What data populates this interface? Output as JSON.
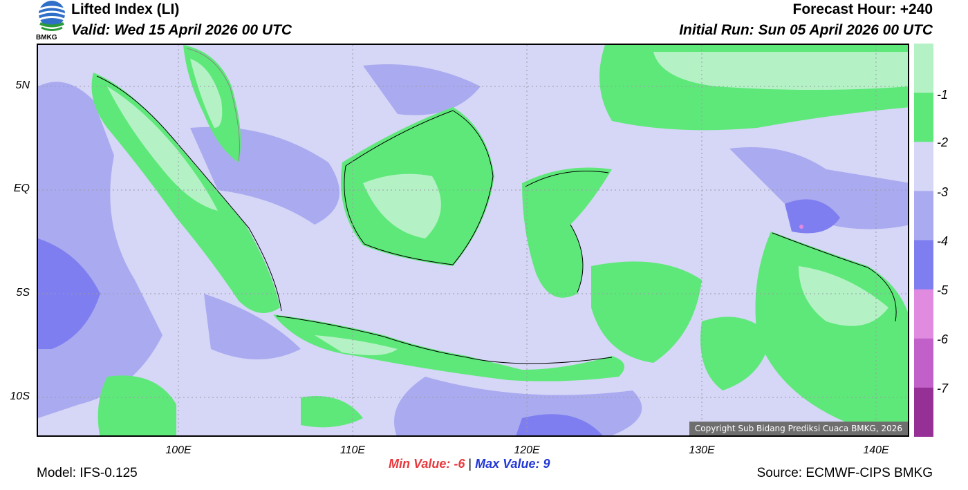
{
  "header": {
    "title": "Lifted Index (LI)",
    "valid": "Valid: Wed 15 April 2026 00 UTC",
    "forecast_hour": "Forecast Hour: +240",
    "initial_run": "Initial Run: Sun 05 April 2026 00 UTC",
    "logo_text": "BMKG"
  },
  "map": {
    "lat_labels": [
      "5N",
      "EQ",
      "5S",
      "10S"
    ],
    "lon_labels": [
      "100E",
      "110E",
      "120E",
      "130E",
      "140E"
    ],
    "copyright": "Copyright Sub Bidang Prediksi Cuaca BMKG, 2026"
  },
  "legend": {
    "labels": [
      "-1",
      "-2",
      "-3",
      "-4",
      "-5",
      "-6",
      "-7"
    ],
    "colors": [
      "#b4f2c6",
      "#5fe87a",
      "#d6d6f7",
      "#aaaaf0",
      "#7e7ef0",
      "#e08ae0",
      "#c060c8",
      "#963096"
    ]
  },
  "footer": {
    "model": "Model: IFS-0.125",
    "source": "Source: ECMWF-CIPS BMKG",
    "min_label": "Min Value:",
    "min_value": "-6",
    "separator": "|",
    "max_label": "Max Value:",
    "max_value": "9"
  },
  "colors": {
    "light_green": "#b4f2c6",
    "green": "#5fe87a",
    "lavender": "#d6d6f7",
    "periwinkle": "#aaaaf0",
    "blue": "#7e7ef0"
  }
}
